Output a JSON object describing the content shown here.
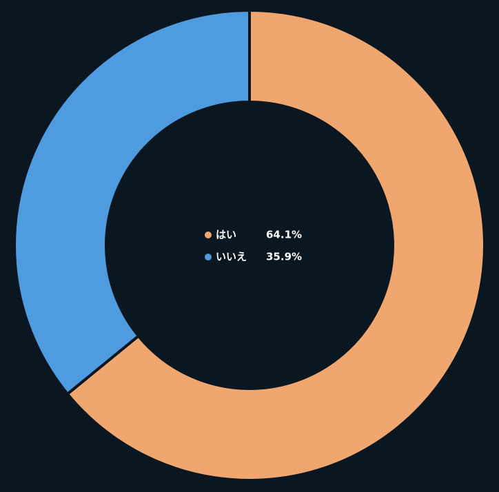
{
  "chart_data": {
    "type": "donut",
    "categories": [
      "はい",
      "いいえ"
    ],
    "values": [
      64.1,
      35.9
    ],
    "value_labels": [
      "64.1%",
      "35.9%"
    ],
    "colors": [
      "#f0a76f",
      "#4e9be0"
    ]
  }
}
